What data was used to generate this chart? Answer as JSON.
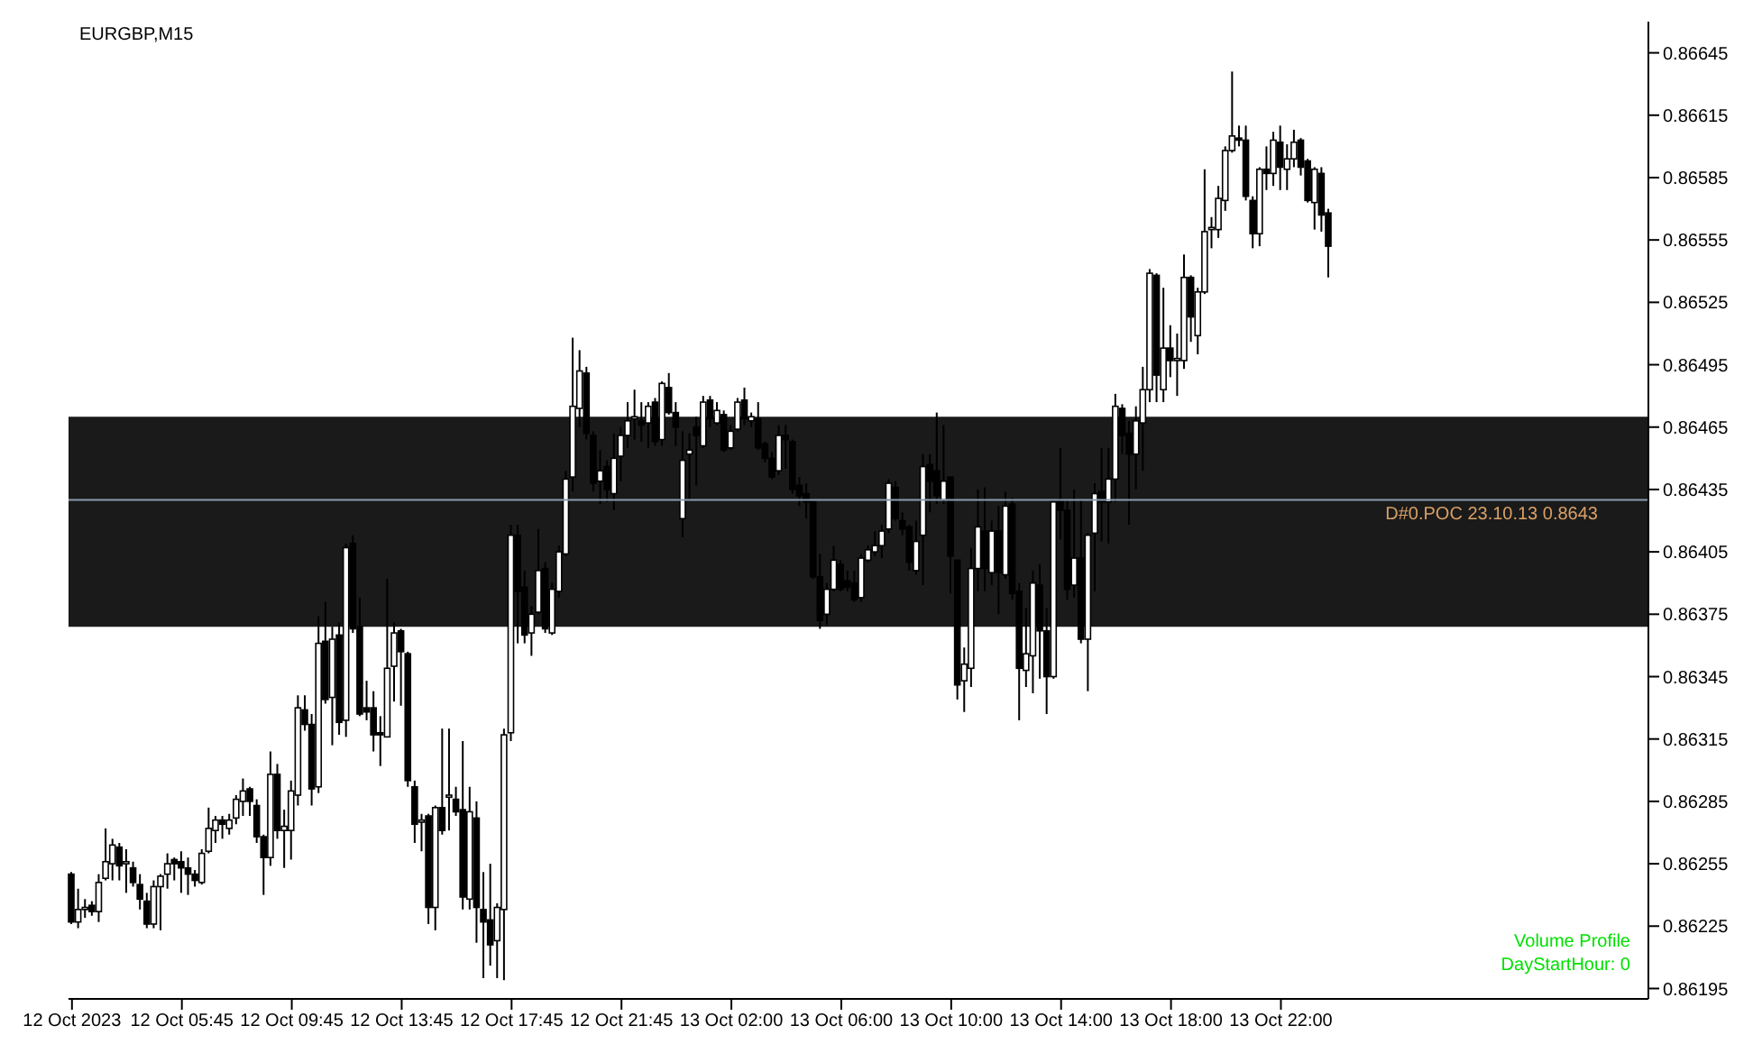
{
  "chart_data": {
    "type": "candlestick",
    "title": "EURGBP,M15",
    "categories": [
      "12 Oct 2023",
      null,
      null,
      null,
      null,
      null,
      null,
      null,
      null,
      null,
      null,
      null,
      null,
      null,
      null,
      null,
      "12 Oct 05:45",
      null,
      null,
      null,
      null,
      null,
      null,
      null,
      null,
      null,
      null,
      null,
      null,
      null,
      null,
      null,
      "12 Oct 09:45",
      null,
      null,
      null,
      null,
      null,
      null,
      null,
      null,
      null,
      null,
      null,
      null,
      null,
      null,
      null,
      "12 Oct 13:45",
      null,
      null,
      null,
      null,
      null,
      null,
      null,
      null,
      null,
      null,
      null,
      null,
      null,
      null,
      null,
      "12 Oct 17:45",
      null,
      null,
      null,
      null,
      null,
      null,
      null,
      null,
      null,
      null,
      null,
      null,
      null,
      null,
      null,
      "12 Oct 21:45",
      null,
      null,
      null,
      null,
      null,
      null,
      null,
      null,
      null,
      null,
      null,
      null,
      null,
      null,
      null,
      "13 Oct 02:00",
      null,
      null,
      null,
      null,
      null,
      null,
      null,
      null,
      null,
      null,
      null,
      null,
      null,
      null,
      null,
      "13 Oct 06:00",
      null,
      null,
      null,
      null,
      null,
      null,
      null,
      null,
      null,
      null,
      null,
      null,
      null,
      null,
      null,
      "13 Oct 10:00",
      null,
      null,
      null,
      null,
      null,
      null,
      null,
      null,
      null,
      null,
      null,
      null,
      null,
      null,
      null,
      "13 Oct 14:00",
      null,
      null,
      null,
      null,
      null,
      null,
      null,
      null,
      null,
      null,
      null,
      null,
      null,
      null,
      null,
      "13 Oct 18:00",
      null,
      null,
      null,
      null,
      null,
      null,
      null,
      null,
      null,
      null,
      null,
      null,
      null,
      null,
      null,
      "13 Oct 22:00",
      null,
      null,
      null,
      null,
      null,
      null,
      null,
      null,
      null,
      null,
      null,
      null,
      null,
      null,
      null,
      null,
      null,
      null,
      null,
      null,
      null,
      null,
      null,
      null,
      null,
      null,
      null,
      null,
      null,
      null,
      null,
      null,
      null,
      null,
      null,
      null,
      null,
      null,
      null,
      null,
      null,
      null,
      null,
      null,
      null,
      null,
      null,
      null,
      null,
      null,
      null,
      null,
      null
    ],
    "ohlc": [
      [
        0.8625,
        0.86251,
        0.86226,
        0.86227
      ],
      [
        0.86227,
        0.86243,
        0.86224,
        0.86233
      ],
      [
        0.86233,
        0.86238,
        0.86229,
        0.86234
      ],
      [
        0.86235,
        0.86237,
        0.8623,
        0.86232
      ],
      [
        0.86232,
        0.8625,
        0.86227,
        0.86246
      ],
      [
        0.86248,
        0.86272,
        0.86247,
        0.86256
      ],
      [
        0.86255,
        0.86267,
        0.86247,
        0.86264
      ],
      [
        0.86263,
        0.86265,
        0.86247,
        0.86254
      ],
      [
        0.86255,
        0.86262,
        0.86241,
        0.86256
      ],
      [
        0.86253,
        0.86256,
        0.86244,
        0.86246
      ],
      [
        0.86245,
        0.8625,
        0.86233,
        0.86238
      ],
      [
        0.86237,
        0.86241,
        0.86224,
        0.86226
      ],
      [
        0.86226,
        0.86247,
        0.86224,
        0.86244
      ],
      [
        0.86244,
        0.8625,
        0.86223,
        0.86249
      ],
      [
        0.8625,
        0.8626,
        0.86243,
        0.86255
      ],
      [
        0.86257,
        0.86258,
        0.86247,
        0.86255
      ],
      [
        0.86256,
        0.86261,
        0.86241,
        0.86253
      ],
      [
        0.86253,
        0.86258,
        0.8624,
        0.8625
      ],
      [
        0.8625,
        0.86252,
        0.86244,
        0.86247
      ],
      [
        0.86246,
        0.86262,
        0.86245,
        0.8626
      ],
      [
        0.86261,
        0.86282,
        0.8626,
        0.86272
      ],
      [
        0.86271,
        0.86278,
        0.86265,
        0.86276
      ],
      [
        0.86276,
        0.86278,
        0.86267,
        0.86274
      ],
      [
        0.86272,
        0.86279,
        0.86269,
        0.86276
      ],
      [
        0.86277,
        0.86288,
        0.86274,
        0.86286
      ],
      [
        0.86285,
        0.86296,
        0.86278,
        0.8629
      ],
      [
        0.86291,
        0.86292,
        0.86278,
        0.86285
      ],
      [
        0.86283,
        0.86286,
        0.86265,
        0.86268
      ],
      [
        0.86268,
        0.86269,
        0.8624,
        0.86258
      ],
      [
        0.86258,
        0.86309,
        0.86254,
        0.86298
      ],
      [
        0.86298,
        0.86303,
        0.86267,
        0.86271
      ],
      [
        0.86271,
        0.86281,
        0.86253,
        0.86273
      ],
      [
        0.86271,
        0.86295,
        0.86257,
        0.8629
      ],
      [
        0.86288,
        0.86336,
        0.86283,
        0.8633
      ],
      [
        0.86329,
        0.86336,
        0.86319,
        0.86322
      ],
      [
        0.86322,
        0.86327,
        0.86283,
        0.86291
      ],
      [
        0.86292,
        0.86374,
        0.86289,
        0.86361
      ],
      [
        0.86362,
        0.86381,
        0.86332,
        0.86334
      ],
      [
        0.86335,
        0.86369,
        0.86312,
        0.86363
      ],
      [
        0.86365,
        0.86371,
        0.86317,
        0.86323
      ],
      [
        0.86324,
        0.86409,
        0.86316,
        0.86407
      ],
      [
        0.86409,
        0.86413,
        0.86366,
        0.86368
      ],
      [
        0.86369,
        0.86383,
        0.86326,
        0.86327
      ],
      [
        0.8633,
        0.86343,
        0.86324,
        0.86328
      ],
      [
        0.8633,
        0.86338,
        0.86309,
        0.86317
      ],
      [
        0.86318,
        0.86326,
        0.86302,
        0.86317
      ],
      [
        0.86316,
        0.86392,
        0.86316,
        0.86349
      ],
      [
        0.8635,
        0.86371,
        0.86333,
        0.86366
      ],
      [
        0.86367,
        0.86368,
        0.86331,
        0.86357
      ],
      [
        0.86356,
        0.86357,
        0.86292,
        0.86295
      ],
      [
        0.86292,
        0.86295,
        0.86265,
        0.86274
      ],
      [
        0.86275,
        0.86279,
        0.86261,
        0.86276
      ],
      [
        0.86278,
        0.86279,
        0.86226,
        0.86234
      ],
      [
        0.86234,
        0.86283,
        0.86223,
        0.86282
      ],
      [
        0.86282,
        0.8632,
        0.86269,
        0.86271
      ],
      [
        0.86287,
        0.8632,
        0.86271,
        0.86288
      ],
      [
        0.86286,
        0.86292,
        0.86278,
        0.8628
      ],
      [
        0.86281,
        0.86314,
        0.86233,
        0.86239
      ],
      [
        0.86238,
        0.86292,
        0.86233,
        0.8628
      ],
      [
        0.86277,
        0.86285,
        0.86217,
        0.86234
      ],
      [
        0.86233,
        0.86251,
        0.862,
        0.86227
      ],
      [
        0.86228,
        0.86255,
        0.86206,
        0.86216
      ],
      [
        0.86218,
        0.86236,
        0.862,
        0.86234
      ],
      [
        0.86233,
        0.8632,
        0.86199,
        0.86317
      ],
      [
        0.86318,
        0.86418,
        0.86314,
        0.86413
      ],
      [
        0.86413,
        0.86418,
        0.86361,
        0.86386
      ],
      [
        0.86388,
        0.86396,
        0.86361,
        0.86365
      ],
      [
        0.86366,
        0.86379,
        0.86355,
        0.86375
      ],
      [
        0.86376,
        0.86416,
        0.86375,
        0.86396
      ],
      [
        0.86397,
        0.864,
        0.86366,
        0.86368
      ],
      [
        0.86366,
        0.8639,
        0.86365,
        0.86387
      ],
      [
        0.86386,
        0.86408,
        0.86383,
        0.86405
      ],
      [
        0.86404,
        0.86444,
        0.86403,
        0.8644
      ],
      [
        0.86441,
        0.86508,
        0.86434,
        0.86475
      ],
      [
        0.86474,
        0.86502,
        0.86465,
        0.86492
      ],
      [
        0.86491,
        0.86494,
        0.86459,
        0.86462
      ],
      [
        0.86461,
        0.86463,
        0.86434,
        0.86438
      ],
      [
        0.86439,
        0.86454,
        0.86428,
        0.86444
      ],
      [
        0.86446,
        0.86449,
        0.86429,
        0.86435
      ],
      [
        0.86433,
        0.86462,
        0.86425,
        0.8645
      ],
      [
        0.86451,
        0.86465,
        0.86439,
        0.86461
      ],
      [
        0.86461,
        0.86477,
        0.86455,
        0.86468
      ],
      [
        0.86469,
        0.86483,
        0.86459,
        0.8647
      ],
      [
        0.86468,
        0.86477,
        0.86458,
        0.86466
      ],
      [
        0.86467,
        0.86477,
        0.86455,
        0.86475
      ],
      [
        0.86477,
        0.86479,
        0.86456,
        0.86458
      ],
      [
        0.86459,
        0.86487,
        0.86456,
        0.86486
      ],
      [
        0.86484,
        0.86491,
        0.86471,
        0.86472
      ],
      [
        0.86472,
        0.86477,
        0.86456,
        0.86465
      ],
      [
        0.86421,
        0.86463,
        0.86412,
        0.86449
      ],
      [
        0.86452,
        0.86462,
        0.8643,
        0.86454
      ],
      [
        0.86465,
        0.8647,
        0.86437,
        0.86461
      ],
      [
        0.86456,
        0.8648,
        0.86455,
        0.86477
      ],
      [
        0.86478,
        0.8648,
        0.86465,
        0.86469
      ],
      [
        0.86467,
        0.86477,
        0.86466,
        0.86473
      ],
      [
        0.86471,
        0.86473,
        0.86453,
        0.86454
      ],
      [
        0.86455,
        0.86466,
        0.86454,
        0.86463
      ],
      [
        0.86464,
        0.86479,
        0.86463,
        0.86477
      ],
      [
        0.86478,
        0.86484,
        0.86466,
        0.86469
      ],
      [
        0.86468,
        0.86472,
        0.86465,
        0.8647
      ],
      [
        0.86469,
        0.86477,
        0.86454,
        0.86455
      ],
      [
        0.86457,
        0.86458,
        0.86448,
        0.8645
      ],
      [
        0.8645,
        0.86453,
        0.8644,
        0.86441
      ],
      [
        0.86444,
        0.86466,
        0.86442,
        0.86461
      ],
      [
        0.86461,
        0.86466,
        0.86445,
        0.86459
      ],
      [
        0.86458,
        0.86459,
        0.86433,
        0.86435
      ],
      [
        0.86437,
        0.86441,
        0.86427,
        0.86432
      ],
      [
        0.86433,
        0.86438,
        0.86421,
        0.86429
      ],
      [
        0.86429,
        0.8643,
        0.86392,
        0.86393
      ],
      [
        0.86393,
        0.86404,
        0.86368,
        0.86372
      ],
      [
        0.86375,
        0.8639,
        0.8637,
        0.86387
      ],
      [
        0.86387,
        0.86408,
        0.86386,
        0.86401
      ],
      [
        0.86399,
        0.86401,
        0.86386,
        0.86387
      ],
      [
        0.86391,
        0.86396,
        0.86386,
        0.86388
      ],
      [
        0.8639,
        0.86396,
        0.86381,
        0.86382
      ],
      [
        0.86383,
        0.86404,
        0.86381,
        0.86402
      ],
      [
        0.86401,
        0.86408,
        0.864,
        0.86406
      ],
      [
        0.86405,
        0.86415,
        0.86403,
        0.86408
      ],
      [
        0.86408,
        0.86418,
        0.86402,
        0.86415
      ],
      [
        0.86416,
        0.8644,
        0.86414,
        0.86438
      ],
      [
        0.86436,
        0.86439,
        0.8642,
        0.86421
      ],
      [
        0.8642,
        0.86424,
        0.86413,
        0.86416
      ],
      [
        0.86417,
        0.86418,
        0.86396,
        0.864
      ],
      [
        0.86396,
        0.8642,
        0.86394,
        0.8641
      ],
      [
        0.86413,
        0.86452,
        0.86389,
        0.86446
      ],
      [
        0.86447,
        0.86452,
        0.86424,
        0.86439
      ],
      [
        0.86444,
        0.86472,
        0.86428,
        0.86432
      ],
      [
        0.8643,
        0.86466,
        0.86428,
        0.86439
      ],
      [
        0.86441,
        0.86441,
        0.86385,
        0.86403
      ],
      [
        0.86401,
        0.86401,
        0.86334,
        0.86341
      ],
      [
        0.86343,
        0.86359,
        0.86328,
        0.86351
      ],
      [
        0.86349,
        0.86407,
        0.8634,
        0.86397
      ],
      [
        0.86397,
        0.86435,
        0.86386,
        0.86417
      ],
      [
        0.86415,
        0.86436,
        0.86386,
        0.86397
      ],
      [
        0.86395,
        0.8642,
        0.86389,
        0.86415
      ],
      [
        0.86415,
        0.86427,
        0.86375,
        0.86395
      ],
      [
        0.86394,
        0.86434,
        0.86392,
        0.86427
      ],
      [
        0.86428,
        0.86431,
        0.86382,
        0.86385
      ],
      [
        0.86386,
        0.8639,
        0.86324,
        0.86349
      ],
      [
        0.86348,
        0.86378,
        0.8634,
        0.86356
      ],
      [
        0.86355,
        0.86396,
        0.86337,
        0.8639
      ],
      [
        0.86389,
        0.86399,
        0.86344,
        0.86367
      ],
      [
        0.86367,
        0.86378,
        0.86327,
        0.86345
      ],
      [
        0.86345,
        0.8643,
        0.86344,
        0.86429
      ],
      [
        0.8643,
        0.86455,
        0.86411,
        0.86425
      ],
      [
        0.86425,
        0.8643,
        0.86382,
        0.86387
      ],
      [
        0.86389,
        0.86435,
        0.86383,
        0.86402
      ],
      [
        0.86402,
        0.8643,
        0.86361,
        0.86363
      ],
      [
        0.86363,
        0.86414,
        0.86338,
        0.86413
      ],
      [
        0.86414,
        0.86438,
        0.86386,
        0.86433
      ],
      [
        0.86434,
        0.86455,
        0.8641,
        0.86429
      ],
      [
        0.86429,
        0.86455,
        0.86409,
        0.8644
      ],
      [
        0.8644,
        0.86481,
        0.86429,
        0.86475
      ],
      [
        0.86474,
        0.86476,
        0.86452,
        0.86461
      ],
      [
        0.86462,
        0.86468,
        0.86418,
        0.86452
      ],
      [
        0.86452,
        0.86475,
        0.86435,
        0.86468
      ],
      [
        0.86467,
        0.86494,
        0.86444,
        0.86483
      ],
      [
        0.86483,
        0.86541,
        0.86477,
        0.86539
      ],
      [
        0.86538,
        0.86539,
        0.86477,
        0.8649
      ],
      [
        0.86483,
        0.86532,
        0.86477,
        0.86503
      ],
      [
        0.86503,
        0.86514,
        0.86489,
        0.86497
      ],
      [
        0.86497,
        0.8651,
        0.8648,
        0.86498
      ],
      [
        0.86497,
        0.86548,
        0.86493,
        0.86537
      ],
      [
        0.86537,
        0.86538,
        0.86506,
        0.86518
      ],
      [
        0.86509,
        0.86532,
        0.865,
        0.8653
      ],
      [
        0.8653,
        0.86589,
        0.86529,
        0.86559
      ],
      [
        0.8656,
        0.86566,
        0.86551,
        0.86561
      ],
      [
        0.8656,
        0.86581,
        0.86556,
        0.86575
      ],
      [
        0.86574,
        0.866,
        0.86569,
        0.86598
      ],
      [
        0.86598,
        0.86636,
        0.86597,
        0.86605
      ],
      [
        0.86604,
        0.8661,
        0.866,
        0.86603
      ],
      [
        0.86603,
        0.8661,
        0.86574,
        0.86576
      ],
      [
        0.86574,
        0.86576,
        0.86551,
        0.86558
      ],
      [
        0.86558,
        0.8659,
        0.86552,
        0.86589
      ],
      [
        0.86589,
        0.866,
        0.86579,
        0.86587
      ],
      [
        0.86587,
        0.86607,
        0.86581,
        0.86603
      ],
      [
        0.86602,
        0.8661,
        0.86579,
        0.8659
      ],
      [
        0.86589,
        0.86601,
        0.86579,
        0.86594
      ],
      [
        0.86594,
        0.86608,
        0.8659,
        0.86602
      ],
      [
        0.86603,
        0.86604,
        0.86586,
        0.8659
      ],
      [
        0.86593,
        0.86594,
        0.86573,
        0.86574
      ],
      [
        0.86573,
        0.8659,
        0.8656,
        0.86589
      ],
      [
        0.86587,
        0.8659,
        0.86559,
        0.86567
      ],
      [
        0.86568,
        0.8657,
        0.86537,
        0.86552
      ],
      null,
      null,
      null,
      null,
      null,
      null,
      null,
      null,
      null,
      null,
      null,
      null,
      null,
      null,
      null,
      null,
      null,
      null,
      null,
      null,
      null,
      null,
      null,
      null,
      null,
      null,
      null,
      null,
      null,
      null,
      null,
      null,
      null,
      null,
      null,
      null,
      null,
      null,
      null,
      null,
      null,
      null,
      null,
      null,
      null,
      null
    ],
    "ylim": [
      0.8619,
      0.8666
    ],
    "yticks": [
      0.86195,
      0.86225,
      0.86255,
      0.86285,
      0.86315,
      0.86345,
      0.86375,
      0.86405,
      0.86435,
      0.86465,
      0.86495,
      0.86525,
      0.86555,
      0.86585,
      0.86615,
      0.86645
    ],
    "ref_lines": [
      {
        "axis": "y",
        "value": 0.8643,
        "label": "D#0.POC 23.10.13 0.8643",
        "color": "#8c9bb0"
      }
    ],
    "bands": [
      {
        "axis": "y",
        "from": 0.86369,
        "to": 0.8647,
        "color": "#1a1a1a"
      }
    ],
    "annotations": [
      "Volume Profile",
      "DayStartHour: 0"
    ]
  }
}
